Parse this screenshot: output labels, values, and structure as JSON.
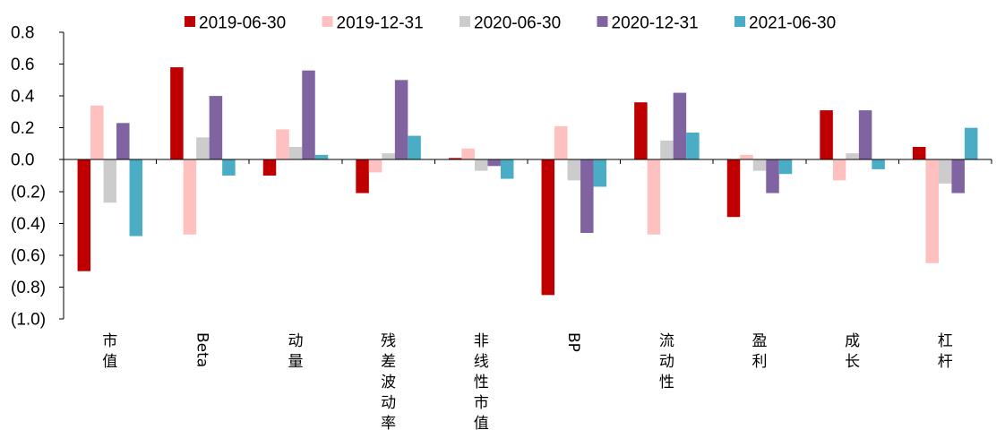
{
  "chart_data": {
    "type": "bar",
    "categories": [
      "市值",
      "Beta",
      "动量",
      "残差波动率",
      "非线性市值",
      "BP",
      "流动性",
      "盈利",
      "成长",
      "杠杆"
    ],
    "vertical_categories": [
      "市值",
      "动量",
      "残差波动率",
      "非线性市值",
      "流动性",
      "盈利",
      "成长",
      "杠杆"
    ],
    "series": [
      {
        "name": "2019-06-30",
        "color": "#c00000",
        "values": [
          -0.7,
          0.58,
          -0.1,
          -0.21,
          0.01,
          -0.85,
          0.36,
          -0.36,
          0.31,
          0.08
        ]
      },
      {
        "name": "2019-12-31",
        "color": "#ffc0c0",
        "values": [
          0.34,
          -0.47,
          0.19,
          -0.08,
          0.07,
          0.21,
          -0.47,
          0.03,
          -0.13,
          -0.65
        ]
      },
      {
        "name": "2020-06-30",
        "color": "#cccccc",
        "values": [
          -0.27,
          0.14,
          0.08,
          0.04,
          -0.07,
          -0.13,
          0.12,
          -0.07,
          0.04,
          -0.15
        ]
      },
      {
        "name": "2020-12-31",
        "color": "#8064a2",
        "values": [
          0.23,
          0.4,
          0.56,
          0.5,
          -0.04,
          -0.46,
          0.42,
          -0.21,
          0.31,
          -0.21
        ]
      },
      {
        "name": "2021-06-30",
        "color": "#4bacc6",
        "values": [
          -0.48,
          -0.1,
          0.03,
          0.15,
          -0.12,
          -0.17,
          0.17,
          -0.09,
          -0.06,
          0.2
        ]
      }
    ],
    "ylim": [
      -1.0,
      0.8
    ],
    "yticks": [
      0.8,
      0.6,
      0.4,
      0.2,
      0.0,
      -0.2,
      -0.4,
      -0.6,
      -0.8,
      -1.0
    ],
    "ytick_labels": [
      "0.8",
      "0.6",
      "0.4",
      "0.2",
      "0.0",
      "(0.2)",
      "(0.4)",
      "(0.6)",
      "(0.8)",
      "(1.0)"
    ],
    "legend_position": "top",
    "grid": false,
    "title": "",
    "xlabel": "",
    "ylabel": ""
  }
}
